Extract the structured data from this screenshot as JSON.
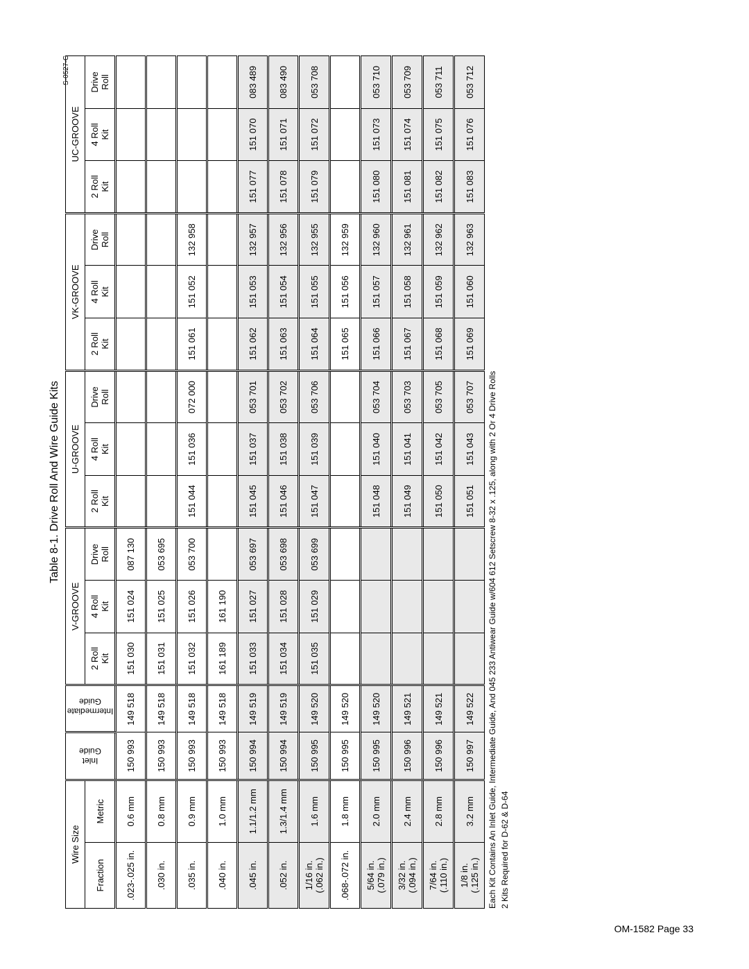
{
  "title": "Table 8-1. Drive Roll And Wire Guide Kits",
  "doc_ref": "S-0527-C",
  "page_footer": "OM-1582 Page 33",
  "footnote_1": "Each Kit Contains An Inlet Guide, Intermediate Guide, And 045 233 Antiwear Guide w/604 612 Setscrew 8-32 x .125, along with 2 Or 4 Drive Rolls",
  "footnote_2": "2 Kits Required for D-62 & D-64",
  "headers": {
    "wire_size": "Wire Size",
    "fraction": "Fraction",
    "metric": "Metric",
    "inlet_guide": "Inlet\nGuide",
    "intermediate_guide": "Intermediate\nGuide",
    "v_groove": "V-GROOVE",
    "u_groove": "U-GROOVE",
    "vk_groove": "VK-GROOVE",
    "uc_groove": "UC-GROOVE",
    "kit2": "2 Roll\nKit",
    "kit4": "4 Roll\nKit",
    "drive": "Drive\nRoll"
  },
  "rows": [
    {
      "frac": ".023-.025 in.",
      "met": "0.6 mm",
      "inlet": "150 993",
      "inter": "149 518",
      "v2": "151 030",
      "v4": "151 024",
      "vd": "087 130",
      "u2": "",
      "u4": "",
      "ud": "",
      "vk2": "",
      "vk4": "",
      "vkd": "",
      "uc2": "",
      "uc4": "",
      "ucd": ""
    },
    {
      "frac": ".030 in.",
      "met": "0.8 mm",
      "inlet": "150 993",
      "inter": "149 518",
      "v2": "151 031",
      "v4": "151 025",
      "vd": "053 695",
      "u2": "",
      "u4": "",
      "ud": "",
      "vk2": "",
      "vk4": "",
      "vkd": "",
      "uc2": "",
      "uc4": "",
      "ucd": ""
    },
    {
      "frac": ".035 in.",
      "met": "0.9 mm",
      "inlet": "150 993",
      "inter": "149 518",
      "v2": "151 032",
      "v4": "151 026",
      "vd": "053 700",
      "u2": "151 044",
      "u4": "151 036",
      "ud": "072 000",
      "vk2": "151 061",
      "vk4": "151 052",
      "vkd": "132 958",
      "uc2": "",
      "uc4": "",
      "ucd": ""
    },
    {
      "frac": ".040 in.",
      "met": "1.0 mm",
      "inlet": "150 993",
      "inter": "149 518",
      "v2": "161 189",
      "v4": "161 190",
      "vd": "",
      "u2": "",
      "u4": "",
      "ud": "",
      "vk2": "",
      "vk4": "",
      "vkd": "",
      "uc2": "",
      "uc4": "",
      "ucd": ""
    },
    {
      "frac": ".045 in.",
      "met": "1.1/1.2 mm",
      "inlet": "150 994",
      "inter": "149 519",
      "v2": "151 033",
      "v4": "151 027",
      "vd": "053 697",
      "u2": "151 045",
      "u4": "151 037",
      "ud": "053 701",
      "vk2": "151 062",
      "vk4": "151 053",
      "vkd": "132 957",
      "uc2": "151 077",
      "uc4": "151 070",
      "ucd": "083 489"
    },
    {
      "frac": ".052 in.",
      "met": "1.3/1.4 mm",
      "inlet": "150 994",
      "inter": "149 519",
      "v2": "151 034",
      "v4": "151 028",
      "vd": "053 698",
      "u2": "151 046",
      "u4": "151 038",
      "ud": "053 702",
      "vk2": "151 063",
      "vk4": "151 054",
      "vkd": "132 956",
      "uc2": "151 078",
      "uc4": "151 071",
      "ucd": "083 490"
    },
    {
      "frac": "1/16 in.\n(.062 in.)",
      "met": "1.6 mm",
      "inlet": "150 995",
      "inter": "149 520",
      "v2": "151 035",
      "v4": "151 029",
      "vd": "053 699",
      "u2": "151 047",
      "u4": "151 039",
      "ud": "053 706",
      "vk2": "151 064",
      "vk4": "151 055",
      "vkd": "132 955",
      "uc2": "151 079",
      "uc4": "151 072",
      "ucd": "053 708"
    },
    {
      "frac": ".068-.072 in.",
      "met": "1.8 mm",
      "inlet": "150 995",
      "inter": "149 520",
      "v2": "",
      "v4": "",
      "vd": "",
      "u2": "",
      "u4": "",
      "ud": "",
      "vk2": "151 065",
      "vk4": "151 056",
      "vkd": "132 959",
      "uc2": "",
      "uc4": "",
      "ucd": ""
    },
    {
      "frac": "5/64 in.\n(.079 in.)",
      "met": "2.0 mm",
      "inlet": "150 995",
      "inter": "149 520",
      "v2": "",
      "v4": "",
      "vd": "",
      "u2": "151 048",
      "u4": "151 040",
      "ud": "053 704",
      "vk2": "151 066",
      "vk4": "151 057",
      "vkd": "132 960",
      "uc2": "151 080",
      "uc4": "151 073",
      "ucd": "053 710"
    },
    {
      "frac": "3/32 in.\n(.094 in.)",
      "met": "2.4 mm",
      "inlet": "150 996",
      "inter": "149 521",
      "v2": "",
      "v4": "",
      "vd": "",
      "u2": "151 049",
      "u4": "151 041",
      "ud": "053 703",
      "vk2": "151 067",
      "vk4": "151 058",
      "vkd": "132 961",
      "uc2": "151 081",
      "uc4": "151 074",
      "ucd": "053 709"
    },
    {
      "frac": "7/64 in.\n(.110 in.)",
      "met": "2.8 mm",
      "inlet": "150 996",
      "inter": "149 521",
      "v2": "",
      "v4": "",
      "vd": "",
      "u2": "151 050",
      "u4": "151 042",
      "ud": "053 705",
      "vk2": "151 068",
      "vk4": "151 059",
      "vkd": "132 962",
      "uc2": "151 082",
      "uc4": "151 075",
      "ucd": "053 711"
    },
    {
      "frac": "1/8 in.\n(.125 in.)",
      "met": "3.2 mm",
      "inlet": "150 997",
      "inter": "149 522",
      "v2": "",
      "v4": "",
      "vd": "",
      "u2": "151 051",
      "u4": "151 043",
      "ud": "053 707",
      "vk2": "151 069",
      "vk4": "151 060",
      "vkd": "132 963",
      "uc2": "151 083",
      "uc4": "151 076",
      "ucd": "053 712"
    }
  ],
  "band_rows": [
    4,
    5,
    6,
    8,
    9,
    10,
    11
  ],
  "colors": {
    "band": "#e9e9e9",
    "border": "#000000",
    "text": "#000000",
    "background": "#ffffff"
  }
}
